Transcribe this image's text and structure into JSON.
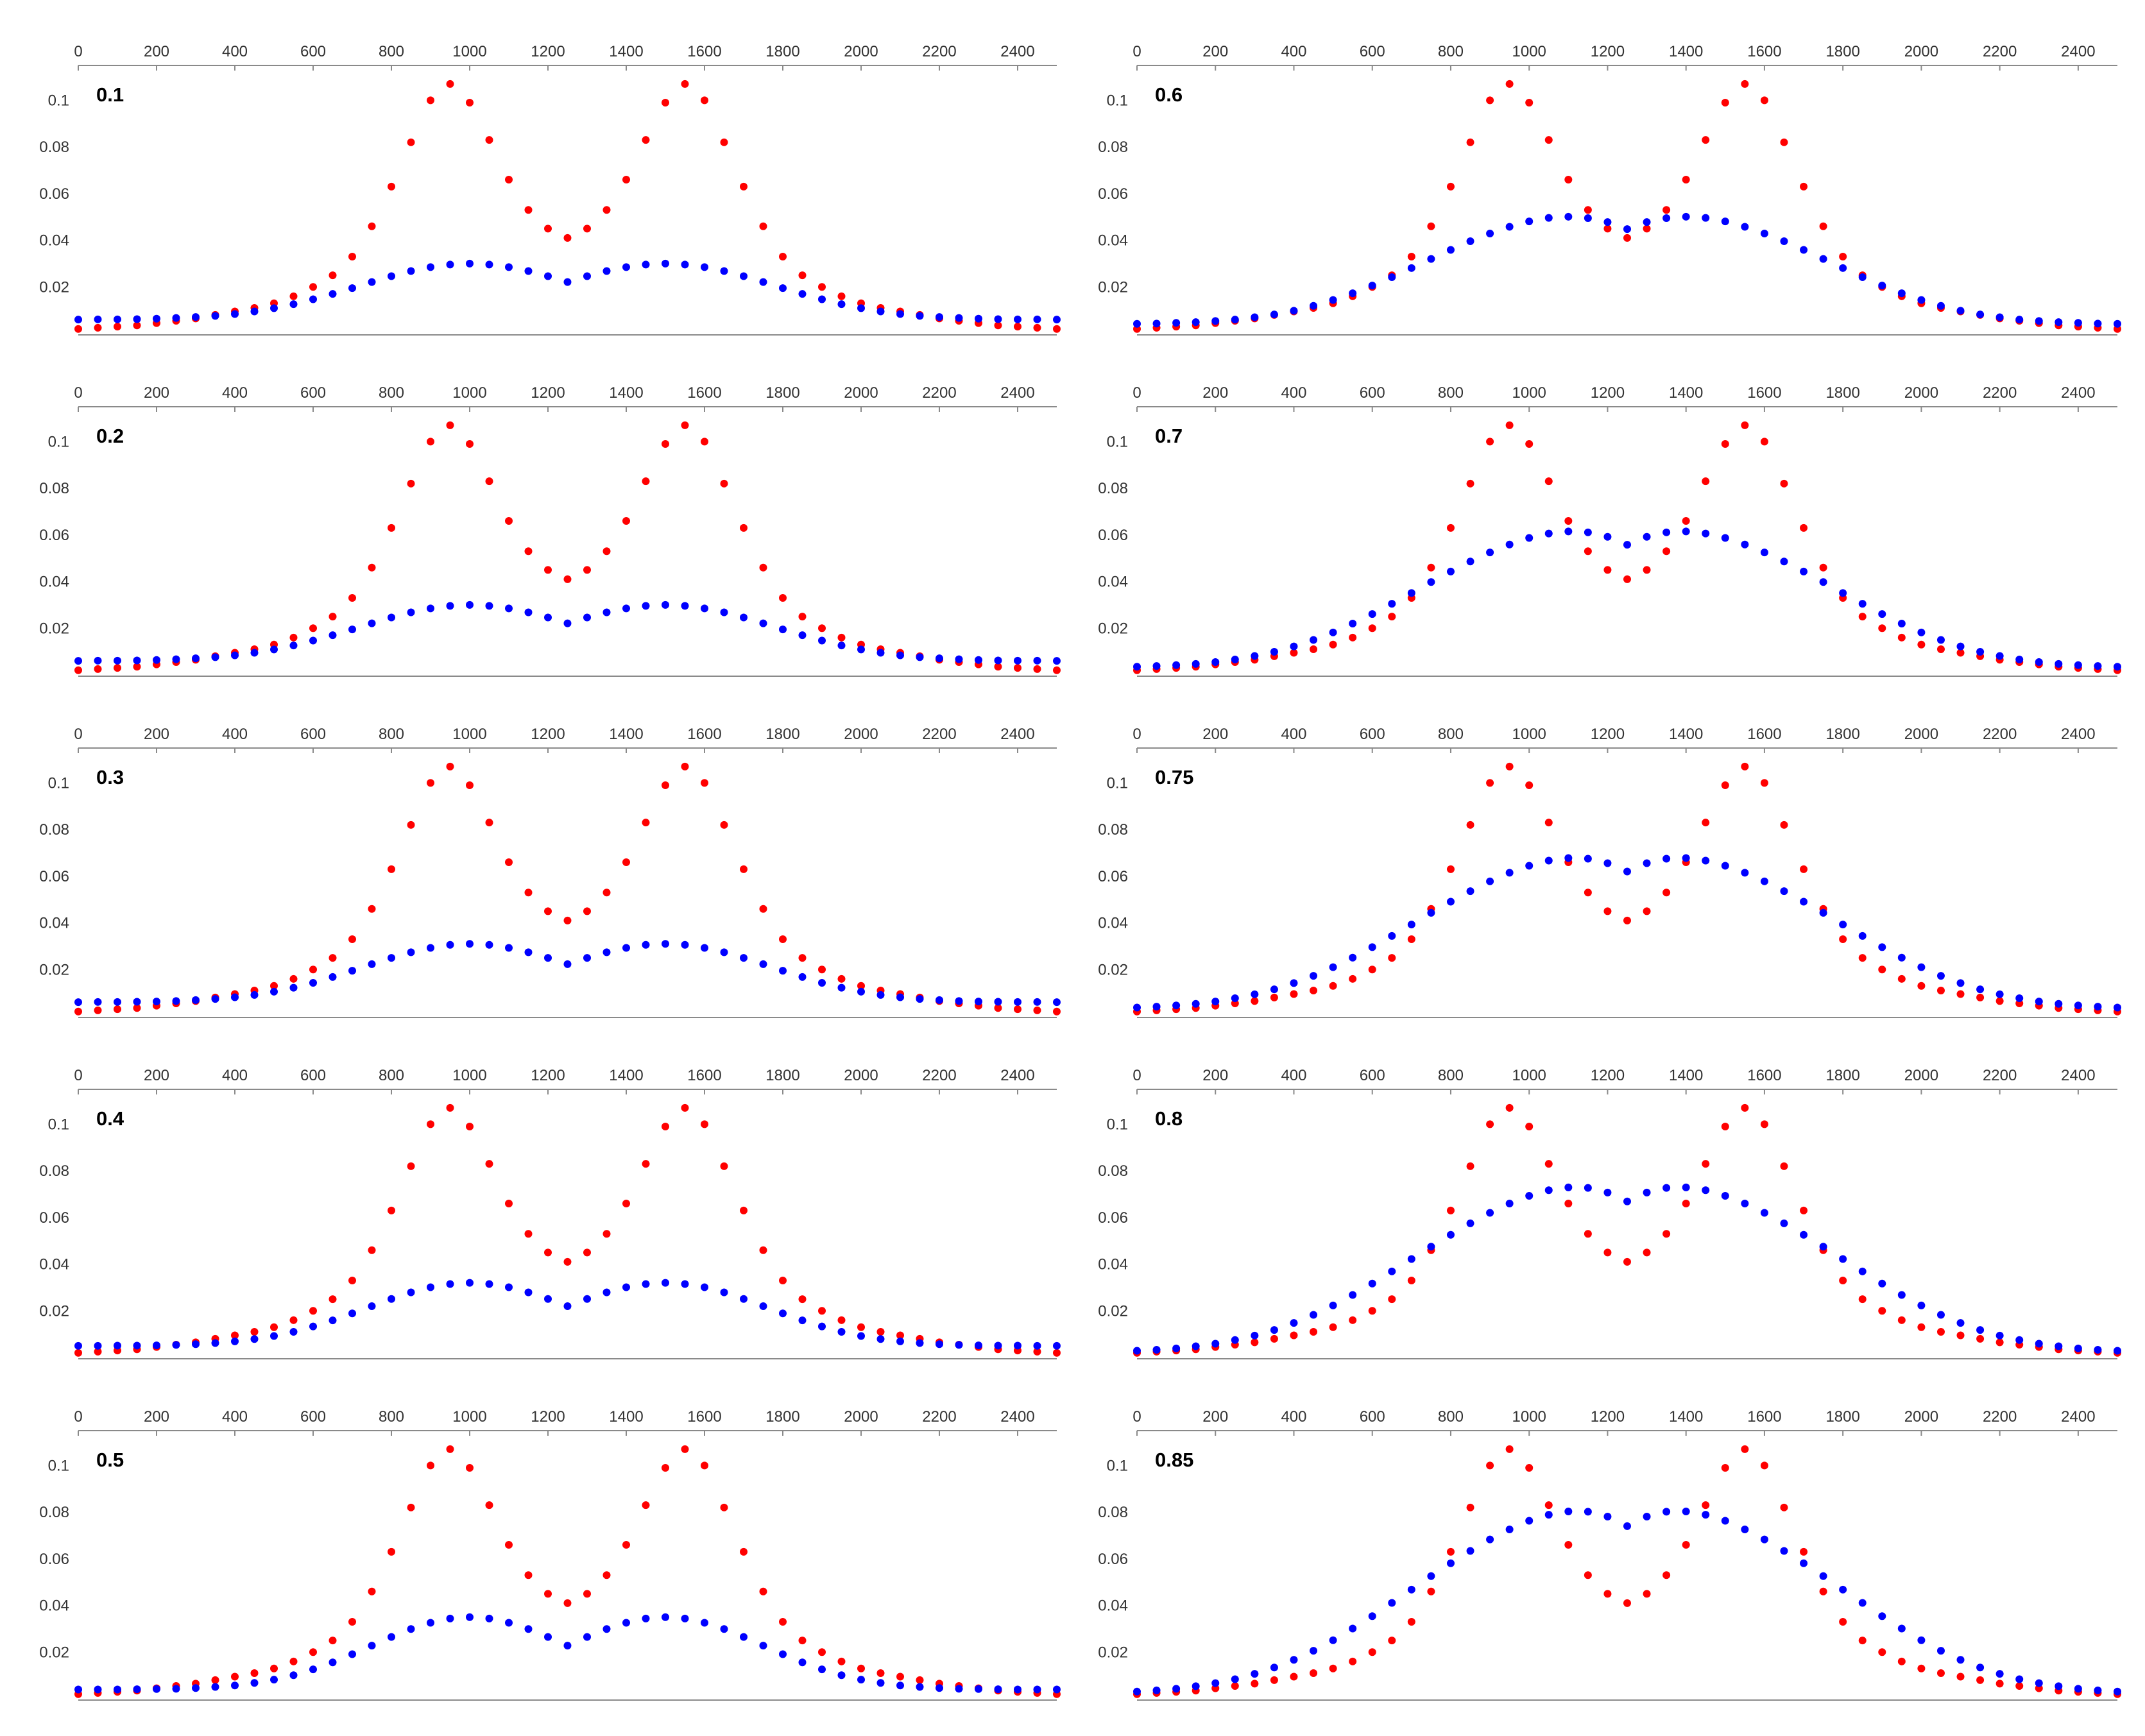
{
  "chart_data": [
    {
      "type": "scatter",
      "panel_label": "0.1",
      "series": [
        {
          "name": "red",
          "color": "#ff0000",
          "x": [],
          "y": []
        },
        {
          "name": "blue",
          "color": "#0000ff",
          "x": [],
          "y": []
        }
      ],
      "xlim": [
        0,
        2500
      ],
      "ylim": [
        0,
        0.11
      ],
      "xticks": [
        "0",
        "200",
        "400",
        "600",
        "800",
        "1000",
        "1200",
        "1400",
        "1600",
        "1800",
        "2000",
        "2200",
        "2400"
      ],
      "yticks": [
        "0.02",
        "0.04",
        "0.06",
        "0.08",
        "0.1"
      ]
    },
    {
      "type": "scatter",
      "panel_label": "0.2",
      "series": [
        {
          "name": "red",
          "color": "#ff0000",
          "x": [],
          "y": []
        },
        {
          "name": "blue",
          "color": "#0000ff",
          "x": [],
          "y": []
        }
      ],
      "xlim": [
        0,
        2500
      ],
      "ylim": [
        0,
        0.11
      ],
      "xticks": [
        "0",
        "200",
        "400",
        "600",
        "800",
        "1000",
        "1200",
        "1400",
        "1600",
        "1800",
        "2000",
        "2200",
        "2400"
      ],
      "yticks": [
        "0.02",
        "0.04",
        "0.06",
        "0.08",
        "0.1"
      ]
    },
    {
      "type": "scatter",
      "panel_label": "0.3",
      "series": [
        {
          "name": "red",
          "color": "#ff0000",
          "x": [],
          "y": []
        },
        {
          "name": "blue",
          "color": "#0000ff",
          "x": [],
          "y": []
        }
      ],
      "xlim": [
        0,
        2500
      ],
      "ylim": [
        0,
        0.11
      ],
      "xticks": [
        "0",
        "200",
        "400",
        "600",
        "800",
        "1000",
        "1200",
        "1400",
        "1600",
        "1800",
        "2000",
        "2200",
        "2400"
      ],
      "yticks": [
        "0.02",
        "0.04",
        "0.06",
        "0.08",
        "0.1"
      ]
    },
    {
      "type": "scatter",
      "panel_label": "0.4",
      "series": [
        {
          "name": "red",
          "color": "#ff0000",
          "x": [],
          "y": []
        },
        {
          "name": "blue",
          "color": "#0000ff",
          "x": [],
          "y": []
        }
      ],
      "xlim": [
        0,
        2500
      ],
      "ylim": [
        0,
        0.11
      ],
      "xticks": [
        "0",
        "200",
        "400",
        "600",
        "800",
        "1000",
        "1200",
        "1400",
        "1600",
        "1800",
        "2000",
        "2200",
        "2400"
      ],
      "yticks": [
        "0.02",
        "0.04",
        "0.06",
        "0.08",
        "0.1"
      ]
    },
    {
      "type": "scatter",
      "panel_label": "0.5",
      "series": [
        {
          "name": "red",
          "color": "#ff0000",
          "x": [],
          "y": []
        },
        {
          "name": "blue",
          "color": "#0000ff",
          "x": [],
          "y": []
        }
      ],
      "xlim": [
        0,
        2500
      ],
      "ylim": [
        0,
        0.11
      ],
      "xticks": [
        "0",
        "200",
        "400",
        "600",
        "800",
        "1000",
        "1200",
        "1400",
        "1600",
        "1800",
        "2000",
        "2200",
        "2400"
      ],
      "yticks": [
        "0.02",
        "0.04",
        "0.06",
        "0.08",
        "0.1"
      ]
    },
    {
      "type": "scatter",
      "panel_label": "0.6",
      "series": [
        {
          "name": "red",
          "color": "#ff0000",
          "x": [],
          "y": []
        },
        {
          "name": "blue",
          "color": "#0000ff",
          "x": [],
          "y": []
        }
      ],
      "xlim": [
        0,
        2500
      ],
      "ylim": [
        0,
        0.11
      ],
      "xticks": [
        "0",
        "200",
        "400",
        "600",
        "800",
        "1000",
        "1200",
        "1400",
        "1600",
        "1800",
        "2000",
        "2200",
        "2400"
      ],
      "yticks": [
        "0.02",
        "0.04",
        "0.06",
        "0.08",
        "0.1"
      ]
    },
    {
      "type": "scatter",
      "panel_label": "0.7",
      "series": [
        {
          "name": "red",
          "color": "#ff0000",
          "x": [],
          "y": []
        },
        {
          "name": "blue",
          "color": "#0000ff",
          "x": [],
          "y": []
        }
      ],
      "xlim": [
        0,
        2500
      ],
      "ylim": [
        0,
        0.11
      ],
      "xticks": [
        "0",
        "200",
        "400",
        "600",
        "800",
        "1000",
        "1200",
        "1400",
        "1600",
        "1800",
        "2000",
        "2200",
        "2400"
      ],
      "yticks": [
        "0.02",
        "0.04",
        "0.06",
        "0.08",
        "0.1"
      ]
    },
    {
      "type": "scatter",
      "panel_label": "0.75",
      "series": [
        {
          "name": "red",
          "color": "#ff0000",
          "x": [],
          "y": []
        },
        {
          "name": "blue",
          "color": "#0000ff",
          "x": [],
          "y": []
        }
      ],
      "xlim": [
        0,
        2500
      ],
      "ylim": [
        0,
        0.11
      ],
      "xticks": [
        "0",
        "200",
        "400",
        "600",
        "800",
        "1000",
        "1200",
        "1400",
        "1600",
        "1800",
        "2000",
        "2200",
        "2400"
      ],
      "yticks": [
        "0.02",
        "0.04",
        "0.06",
        "0.08",
        "0.1"
      ]
    },
    {
      "type": "scatter",
      "panel_label": "0.8",
      "series": [
        {
          "name": "red",
          "color": "#ff0000",
          "x": [],
          "y": []
        },
        {
          "name": "blue",
          "color": "#0000ff",
          "x": [],
          "y": []
        }
      ],
      "xlim": [
        0,
        2500
      ],
      "ylim": [
        0,
        0.11
      ],
      "xticks": [
        "0",
        "200",
        "400",
        "600",
        "800",
        "1000",
        "1200",
        "1400",
        "1600",
        "1800",
        "2000",
        "2200",
        "2400"
      ],
      "yticks": [
        "0.02",
        "0.04",
        "0.06",
        "0.08",
        "0.1"
      ]
    },
    {
      "type": "scatter",
      "panel_label": "0.85",
      "series": [
        {
          "name": "red",
          "color": "#ff0000",
          "x": [],
          "y": []
        },
        {
          "name": "blue",
          "color": "#0000ff",
          "x": [],
          "y": []
        }
      ],
      "xlim": [
        0,
        2500
      ],
      "ylim": [
        0,
        0.11
      ],
      "xticks": [
        "0",
        "200",
        "400",
        "600",
        "800",
        "1000",
        "1200",
        "1400",
        "1600",
        "1800",
        "2000",
        "2200",
        "2400"
      ],
      "yticks": [
        "0.02",
        "0.04",
        "0.06",
        "0.08",
        "0.1"
      ]
    }
  ]
}
